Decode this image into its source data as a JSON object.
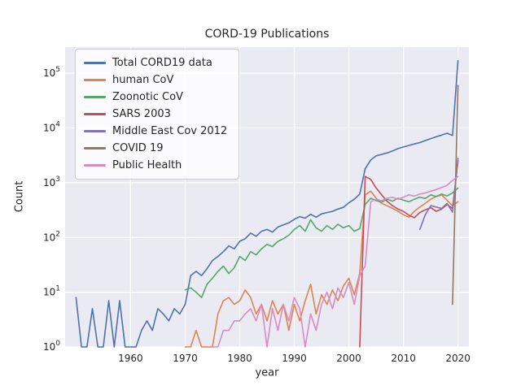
{
  "figure": {
    "background": "#ffffff",
    "plot_background": "#eaeaf2",
    "grid_color": "#ffffff",
    "text_color": "#262626"
  },
  "chart_data": {
    "type": "line",
    "title": "CORD-19 Publications",
    "xlabel": "year",
    "ylabel": "Count",
    "yscale": "log",
    "grid": true,
    "legend_position": "upper left",
    "xlim": [
      1948,
      2022
    ],
    "ylim": [
      1,
      300000
    ],
    "xticks": [
      1960,
      1970,
      1980,
      1990,
      2000,
      2010,
      2020
    ],
    "ytick_exponents": [
      0,
      1,
      2,
      3,
      4,
      5
    ],
    "series": [
      {
        "name": "Total CORD19 data",
        "slug": "total-cord19-data",
        "color": "#4c72b0",
        "x_start": 1950,
        "x_step": 1,
        "values": [
          8,
          1,
          1,
          5,
          1,
          1,
          7,
          1,
          7,
          1,
          1,
          1,
          2,
          3,
          2,
          5,
          4,
          3,
          5,
          4,
          6,
          20,
          24,
          20,
          27,
          38,
          45,
          55,
          70,
          62,
          85,
          95,
          120,
          105,
          130,
          140,
          125,
          155,
          170,
          185,
          215,
          240,
          225,
          265,
          235,
          270,
          285,
          300,
          330,
          355,
          430,
          500,
          620,
          1800,
          2600,
          3100,
          3300,
          3500,
          3800,
          4200,
          4500,
          4800,
          5100,
          5400,
          5900,
          6400,
          6900,
          7400,
          8000,
          7300,
          170000
        ]
      },
      {
        "name": "human CoV",
        "slug": "human-cov",
        "color": "#dd8452",
        "x_start": 1970,
        "x_step": 1,
        "values": [
          1,
          1,
          2,
          1,
          1,
          1,
          4,
          7,
          8,
          6,
          7,
          11,
          8,
          4,
          6,
          3,
          7,
          4,
          6,
          2,
          6,
          3,
          7,
          14,
          4,
          9,
          6,
          11,
          7,
          13,
          18,
          9,
          22,
          600,
          700,
          520,
          420,
          380,
          340,
          300,
          260,
          235,
          300,
          360,
          420,
          500,
          560,
          600,
          480,
          380,
          450
        ]
      },
      {
        "name": "Zoonotic CoV",
        "slug": "zoonotic-cov",
        "color": "#55a868",
        "x_start": 1970,
        "x_step": 1,
        "values": [
          11,
          12,
          10,
          8,
          14,
          18,
          24,
          30,
          22,
          28,
          45,
          38,
          55,
          48,
          62,
          75,
          68,
          85,
          95,
          110,
          140,
          165,
          130,
          210,
          150,
          130,
          165,
          140,
          175,
          150,
          165,
          130,
          145,
          400,
          520,
          470,
          440,
          500,
          460,
          520,
          480,
          450,
          500,
          545,
          515,
          600,
          560,
          620,
          575,
          650,
          800
        ]
      },
      {
        "name": "SARS 2003",
        "slug": "sars-2003",
        "color": "#c44e52",
        "x_start": 2002,
        "x_step": 1,
        "values": [
          1,
          1300,
          1150,
          800,
          600,
          460,
          380,
          330,
          300,
          255,
          230,
          285,
          320,
          350,
          300,
          330,
          400,
          340,
          2500
        ]
      },
      {
        "name": "Middle East Cov 2012",
        "slug": "middle-east-cov-2012",
        "color": "#8172b3",
        "x_start": 2013,
        "x_step": 1,
        "values": [
          140,
          260,
          380,
          360,
          340,
          420,
          290,
          2800
        ]
      },
      {
        "name": "COVID 19",
        "slug": "covid-19",
        "color": "#937860",
        "x_start": 2019,
        "x_step": 1,
        "values": [
          6,
          60000
        ]
      },
      {
        "name": "Public Health",
        "slug": "public-health",
        "color": "#da8bc3",
        "x_start": 1975,
        "x_step": 1,
        "values": [
          1,
          1,
          2,
          2,
          3,
          3,
          4,
          5,
          3,
          6,
          1,
          5,
          2,
          6,
          3,
          8,
          5,
          1,
          4,
          2,
          6,
          10,
          5,
          12,
          8,
          15,
          6,
          20,
          30,
          450,
          500,
          470,
          520,
          540,
          500,
          545,
          600,
          570,
          620,
          650,
          700,
          750,
          820,
          900,
          1100,
          1300
        ]
      }
    ]
  }
}
